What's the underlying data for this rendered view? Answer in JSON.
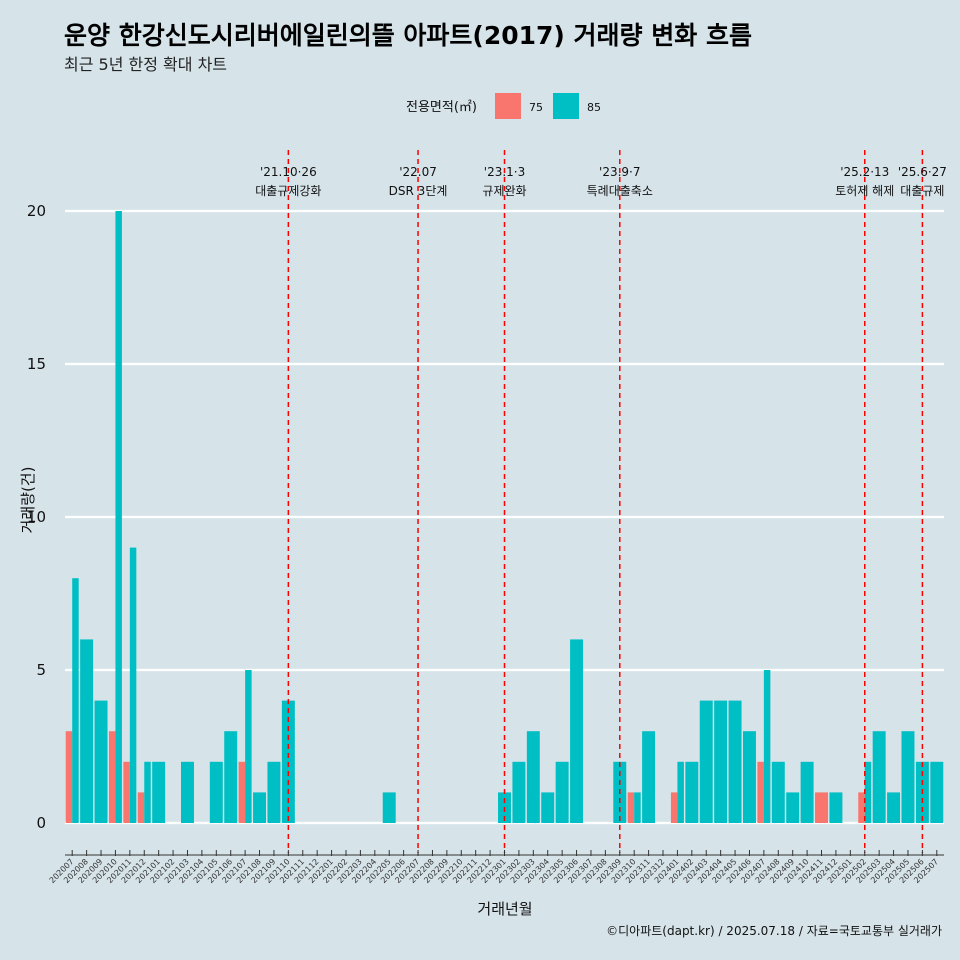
{
  "chart_data": {
    "type": "bar",
    "title": "운양 한강신도시리버에일린의뜰 아파트(2017) 거래량 변화 흐름",
    "subtitle": "최근 5년 한정 확대 차트",
    "xlabel": "거래년월",
    "ylabel": "거래량(건)",
    "ylim": [
      0,
      20
    ],
    "yticks": [
      0,
      5,
      10,
      15,
      20
    ],
    "grid": "horizontal",
    "legend": {
      "title": "전용면적(㎡)",
      "position": "top",
      "entries": [
        {
          "label": "75",
          "color": "#f8766d"
        },
        {
          "label": "85",
          "color": "#00bfc4"
        }
      ]
    },
    "categories": [
      "202007",
      "202008",
      "202009",
      "202010",
      "202011",
      "202012",
      "202101",
      "202102",
      "202103",
      "202104",
      "202105",
      "202106",
      "202107",
      "202108",
      "202109",
      "202110",
      "202111",
      "202112",
      "202201",
      "202202",
      "202203",
      "202204",
      "202205",
      "202206",
      "202207",
      "202208",
      "202209",
      "202210",
      "202211",
      "202212",
      "202301",
      "202302",
      "202303",
      "202304",
      "202305",
      "202306",
      "202307",
      "202308",
      "202309",
      "202310",
      "202311",
      "202312",
      "202401",
      "202402",
      "202403",
      "202404",
      "202405",
      "202406",
      "202407",
      "202408",
      "202409",
      "202410",
      "202411",
      "202412",
      "202501",
      "202502",
      "202503",
      "202504",
      "202505",
      "202506",
      "202507"
    ],
    "series": [
      {
        "name": "75",
        "color": "#f8766d",
        "values": [
          3,
          0,
          0,
          3,
          2,
          1,
          0,
          0,
          0,
          0,
          0,
          0,
          2,
          0,
          0,
          0,
          0,
          0,
          0,
          0,
          0,
          0,
          0,
          0,
          0,
          0,
          0,
          0,
          0,
          0,
          0,
          0,
          0,
          0,
          0,
          0,
          0,
          0,
          0,
          1,
          0,
          0,
          1,
          0,
          0,
          0,
          0,
          0,
          2,
          0,
          0,
          0,
          1,
          0,
          0,
          1,
          0,
          0,
          0,
          0,
          0
        ]
      },
      {
        "name": "85",
        "color": "#00bfc4",
        "values": [
          8,
          6,
          4,
          20,
          9,
          2,
          2,
          0,
          2,
          0,
          2,
          3,
          5,
          1,
          2,
          4,
          0,
          0,
          0,
          0,
          0,
          0,
          1,
          0,
          0,
          0,
          0,
          0,
          0,
          0,
          1,
          2,
          3,
          1,
          2,
          6,
          0,
          0,
          2,
          1,
          3,
          0,
          2,
          2,
          4,
          4,
          4,
          3,
          5,
          2,
          1,
          2,
          0,
          1,
          0,
          2,
          3,
          1,
          3,
          2,
          2
        ]
      }
    ],
    "events": [
      {
        "category": "202110",
        "date": "'21.10·26",
        "label": "대출규제강화"
      },
      {
        "category": "202207",
        "date": "'22.07",
        "label": "DSR 3단계"
      },
      {
        "category": "202301",
        "date": "'23.1·3",
        "label": "규제완화"
      },
      {
        "category": "202309",
        "date": "'23.9·7",
        "label": "특례대출축소"
      },
      {
        "category": "202502",
        "date": "'25.2·13",
        "label": "토허제 해제"
      },
      {
        "category": "202506",
        "date": "'25.6·27",
        "label": "대출규제"
      }
    ],
    "event_line_color": "#ff0000"
  },
  "caption": "©디아파트(dapt.kr) / 2025.07.18 / 자료=국토교통부 실거래가"
}
